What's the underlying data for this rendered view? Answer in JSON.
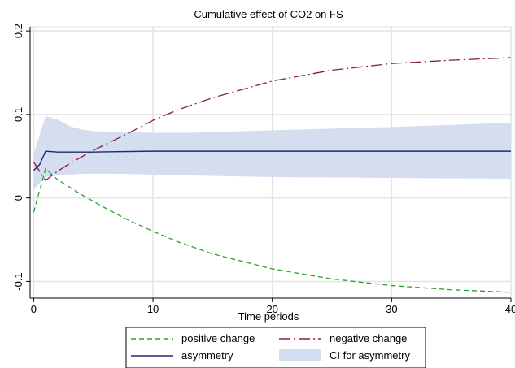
{
  "chart_data": {
    "type": "line",
    "title": "Cumulative effect of CO2 on FS",
    "xlabel": "Time periods",
    "ylabel": "",
    "xlim": [
      -0.3,
      40
    ],
    "ylim": [
      -0.12,
      0.205
    ],
    "grid": true,
    "x_ticks": [
      "0",
      "10",
      "20",
      "30",
      "40"
    ],
    "x_tick_values": [
      0,
      10,
      20,
      30,
      40
    ],
    "y_ticks": [
      "-0.1",
      "0",
      "0.1",
      "0.2"
    ],
    "y_tick_values": [
      -0.1,
      0,
      0.1,
      0.2
    ],
    "legend_position": "bottom",
    "series": [
      {
        "name": "positive change",
        "color": "#2ca02c",
        "style": "dashed",
        "x": [
          0,
          1,
          2,
          3,
          4,
          5,
          6,
          8,
          10,
          12,
          15,
          20,
          25,
          30,
          35,
          40
        ],
        "values": [
          -0.017,
          0.035,
          0.022,
          0.013,
          0.004,
          -0.004,
          -0.012,
          -0.027,
          -0.04,
          -0.052,
          -0.067,
          -0.085,
          -0.097,
          -0.105,
          -0.11,
          -0.113
        ]
      },
      {
        "name": "negative change",
        "color": "#8b1a4a",
        "style": "longdash-dot",
        "x": [
          0,
          1,
          2,
          3,
          4,
          5,
          6,
          8,
          10,
          12,
          15,
          20,
          25,
          30,
          35,
          40
        ],
        "values": [
          0.043,
          0.021,
          0.032,
          0.041,
          0.049,
          0.057,
          0.064,
          0.078,
          0.093,
          0.105,
          0.12,
          0.14,
          0.153,
          0.161,
          0.165,
          0.168
        ]
      },
      {
        "name": "asymmetry",
        "color": "#1f2a7a",
        "style": "solid",
        "x": [
          0,
          0.5,
          1,
          2,
          3,
          5,
          10,
          20,
          30,
          40
        ],
        "values": [
          0.033,
          0.04,
          0.056,
          0.055,
          0.055,
          0.055,
          0.056,
          0.056,
          0.056,
          0.056
        ]
      }
    ],
    "band": {
      "name": "CI for asymmetry",
      "color": "#d4deef",
      "x": [
        0,
        1,
        2,
        3,
        4,
        5,
        7,
        10,
        13,
        20,
        30,
        40
      ],
      "upper": [
        0.053,
        0.098,
        0.094,
        0.086,
        0.082,
        0.08,
        0.079,
        0.078,
        0.078,
        0.081,
        0.085,
        0.09
      ],
      "lower": [
        0.01,
        0.025,
        0.027,
        0.028,
        0.029,
        0.029,
        0.029,
        0.028,
        0.027,
        0.025,
        0.024,
        0.023
      ]
    }
  }
}
